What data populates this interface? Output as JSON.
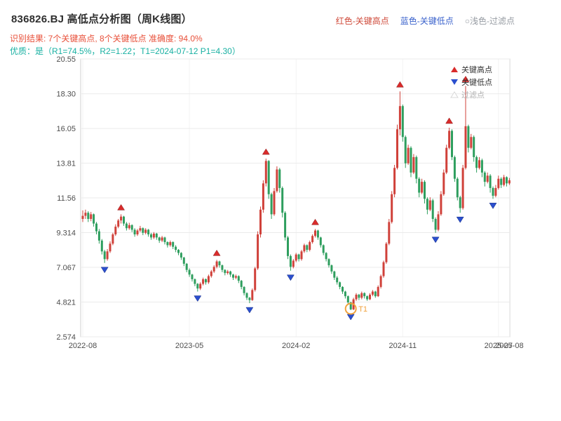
{
  "header": {
    "title": "836826.BJ 高低点分析图（周K线图）",
    "legend_top": [
      {
        "label": "红色-关键高点",
        "color": "#cf4a3a"
      },
      {
        "label": "蓝色-关键低点",
        "color": "#3a62cc"
      },
      {
        "label": "○浅色-过滤点",
        "color": "#979ca3"
      }
    ],
    "result_line": "识别结果: 7个关键高点, 8个关键低点  准确度: 94.0%",
    "result_color": "#e8503a",
    "quality_line": "优质：是（R1=74.5%，R2=1.22；T1=2024-07-12 P1=4.30）",
    "quality_color": "#18b0a2"
  },
  "chart_data": {
    "type": "candlestick",
    "title": "836826.BJ 高低点分析图（周K线图）",
    "ylim": [
      2.574,
      20.55
    ],
    "grid": "on",
    "y_ticks": [
      "20.55",
      "18.30",
      "16.05",
      "13.81",
      "11.56",
      "9.314",
      "7.067",
      "4.821",
      "2.574"
    ],
    "x_ticks": [
      {
        "label": "2022-08",
        "week": 0
      },
      {
        "label": "2023-05",
        "week": 39
      },
      {
        "label": "2024-02",
        "week": 78
      },
      {
        "label": "2024-11",
        "week": 117
      },
      {
        "label": "2025-07",
        "week": 152
      },
      {
        "label": "2025-08",
        "week": 156
      }
    ],
    "legend": [
      {
        "label": "关键高点",
        "marker": "up-triangle",
        "color": "#d92b2b",
        "text_color": "#333333"
      },
      {
        "label": "关键低点",
        "marker": "down-triangle",
        "color": "#2b4fce",
        "text_color": "#333333"
      },
      {
        "label": "过滤点",
        "marker": "hollow-triangle",
        "color": "#d8d8d8",
        "text_color": "#b0b0b0"
      }
    ],
    "colors": {
      "up": "#d0413a",
      "down": "#2e9e5e",
      "key_high": "#d92b2b",
      "key_low": "#2b4fce",
      "t1": "#f0a23c",
      "grid": "#ebebeb",
      "spine": "#d2d2d2"
    },
    "key_highs": [
      14,
      49,
      67,
      85,
      116,
      134,
      140
    ],
    "key_lows": [
      8,
      42,
      61,
      76,
      98,
      129,
      138,
      150
    ],
    "t1": {
      "week": 98,
      "label": "T1",
      "price": 4.3,
      "date": "2024-07-12"
    },
    "candles": [
      [
        10.2,
        10.75,
        10.0,
        10.4
      ],
      [
        10.4,
        10.8,
        10.2,
        10.6
      ],
      [
        10.6,
        10.7,
        10.0,
        10.2
      ],
      [
        10.2,
        10.65,
        10.05,
        10.5
      ],
      [
        10.5,
        10.55,
        9.7,
        9.9
      ],
      [
        9.9,
        10.0,
        9.2,
        9.4
      ],
      [
        9.4,
        9.55,
        8.6,
        8.8
      ],
      [
        8.8,
        8.9,
        7.9,
        8.1
      ],
      [
        8.1,
        8.2,
        7.35,
        7.6
      ],
      [
        7.6,
        8.25,
        7.5,
        8.1
      ],
      [
        8.1,
        8.75,
        8.0,
        8.6
      ],
      [
        8.6,
        9.3,
        8.5,
        9.2
      ],
      [
        9.2,
        9.85,
        9.1,
        9.7
      ],
      [
        9.7,
        10.2,
        9.6,
        10.1
      ],
      [
        10.1,
        10.5,
        9.9,
        10.35
      ],
      [
        10.35,
        10.4,
        9.75,
        9.9
      ],
      [
        9.9,
        10.0,
        9.45,
        9.6
      ],
      [
        9.6,
        9.95,
        9.5,
        9.8
      ],
      [
        9.8,
        9.85,
        9.35,
        9.5
      ],
      [
        9.5,
        9.6,
        9.05,
        9.2
      ],
      [
        9.2,
        9.55,
        9.1,
        9.45
      ],
      [
        9.45,
        9.75,
        9.35,
        9.6
      ],
      [
        9.6,
        9.65,
        9.15,
        9.3
      ],
      [
        9.3,
        9.6,
        9.2,
        9.5
      ],
      [
        9.5,
        9.55,
        9.05,
        9.2
      ],
      [
        9.2,
        9.3,
        8.85,
        9.0
      ],
      [
        9.0,
        9.35,
        8.9,
        9.25
      ],
      [
        9.25,
        9.3,
        8.85,
        9.0
      ],
      [
        9.0,
        9.05,
        8.65,
        8.8
      ],
      [
        8.8,
        9.1,
        8.7,
        9.0
      ],
      [
        9.0,
        9.05,
        8.55,
        8.7
      ],
      [
        8.7,
        8.75,
        8.35,
        8.5
      ],
      [
        8.5,
        8.8,
        8.4,
        8.7
      ],
      [
        8.7,
        8.75,
        8.25,
        8.4
      ],
      [
        8.4,
        8.5,
        8.05,
        8.2
      ],
      [
        8.2,
        8.25,
        7.85,
        8.0
      ],
      [
        8.0,
        8.05,
        7.55,
        7.7
      ],
      [
        7.7,
        7.75,
        7.15,
        7.3
      ],
      [
        7.3,
        7.35,
        6.75,
        6.9
      ],
      [
        6.9,
        7.0,
        6.45,
        6.6
      ],
      [
        6.6,
        6.65,
        6.15,
        6.3
      ],
      [
        6.3,
        6.35,
        5.85,
        6.0
      ],
      [
        6.0,
        6.05,
        5.5,
        5.7
      ],
      [
        5.7,
        6.1,
        5.6,
        6.0
      ],
      [
        6.0,
        6.4,
        5.9,
        6.3
      ],
      [
        6.3,
        6.35,
        5.95,
        6.1
      ],
      [
        6.1,
        6.6,
        6.0,
        6.5
      ],
      [
        6.5,
        6.9,
        6.4,
        6.8
      ],
      [
        6.8,
        7.2,
        6.7,
        7.1
      ],
      [
        7.1,
        7.55,
        7.0,
        7.45
      ],
      [
        7.45,
        7.5,
        7.05,
        7.2
      ],
      [
        7.2,
        7.25,
        6.75,
        6.9
      ],
      [
        6.9,
        6.95,
        6.55,
        6.7
      ],
      [
        6.7,
        6.9,
        6.6,
        6.8
      ],
      [
        6.8,
        6.85,
        6.45,
        6.6
      ],
      [
        6.6,
        6.65,
        6.25,
        6.4
      ],
      [
        6.4,
        6.6,
        6.3,
        6.5
      ],
      [
        6.5,
        6.55,
        6.05,
        6.2
      ],
      [
        6.2,
        6.25,
        5.65,
        5.8
      ],
      [
        5.8,
        5.85,
        5.25,
        5.4
      ],
      [
        5.4,
        5.45,
        4.95,
        5.1
      ],
      [
        5.1,
        5.15,
        4.75,
        4.95
      ],
      [
        4.95,
        5.7,
        4.9,
        5.6
      ],
      [
        5.6,
        7.1,
        5.5,
        7.0
      ],
      [
        7.0,
        9.4,
        6.9,
        9.2
      ],
      [
        9.2,
        11.0,
        9.0,
        10.8
      ],
      [
        10.8,
        12.7,
        10.6,
        12.5
      ],
      [
        12.5,
        14.1,
        12.3,
        13.95
      ],
      [
        13.95,
        14.0,
        11.5,
        11.8
      ],
      [
        11.8,
        11.9,
        10.2,
        10.5
      ],
      [
        10.5,
        12.2,
        10.4,
        12.0
      ],
      [
        12.0,
        13.6,
        11.9,
        13.4
      ],
      [
        13.4,
        13.5,
        11.9,
        12.2
      ],
      [
        12.2,
        12.3,
        10.3,
        10.6
      ],
      [
        10.6,
        10.7,
        8.8,
        9.0
      ],
      [
        9.0,
        9.1,
        7.6,
        7.8
      ],
      [
        7.8,
        7.9,
        6.85,
        7.1
      ],
      [
        7.1,
        7.6,
        7.0,
        7.5
      ],
      [
        7.5,
        8.0,
        7.4,
        7.9
      ],
      [
        7.9,
        7.95,
        7.45,
        7.6
      ],
      [
        7.6,
        8.2,
        7.5,
        8.1
      ],
      [
        8.1,
        8.6,
        8.0,
        8.5
      ],
      [
        8.5,
        8.55,
        8.05,
        8.2
      ],
      [
        8.2,
        8.8,
        8.1,
        8.7
      ],
      [
        8.7,
        9.2,
        8.6,
        9.1
      ],
      [
        9.1,
        9.55,
        9.0,
        9.45
      ],
      [
        9.45,
        9.5,
        8.85,
        9.0
      ],
      [
        9.0,
        9.05,
        8.35,
        8.5
      ],
      [
        8.5,
        8.55,
        7.85,
        8.0
      ],
      [
        8.0,
        8.05,
        7.45,
        7.6
      ],
      [
        7.6,
        7.65,
        7.05,
        7.2
      ],
      [
        7.2,
        7.25,
        6.65,
        6.8
      ],
      [
        6.8,
        6.85,
        6.25,
        6.4
      ],
      [
        6.4,
        6.5,
        5.95,
        6.1
      ],
      [
        6.1,
        6.15,
        5.65,
        5.8
      ],
      [
        5.8,
        5.85,
        5.35,
        5.5
      ],
      [
        5.5,
        5.55,
        5.05,
        5.2
      ],
      [
        5.2,
        5.25,
        4.65,
        4.8
      ],
      [
        4.8,
        4.85,
        4.3,
        4.35
      ],
      [
        4.35,
        5.1,
        4.3,
        5.0
      ],
      [
        5.0,
        5.4,
        4.9,
        5.3
      ],
      [
        5.3,
        5.35,
        4.95,
        5.1
      ],
      [
        5.1,
        5.5,
        5.0,
        5.4
      ],
      [
        5.4,
        5.45,
        5.05,
        5.2
      ],
      [
        5.2,
        5.25,
        4.9,
        5.0
      ],
      [
        5.0,
        5.4,
        4.95,
        5.3
      ],
      [
        5.3,
        5.6,
        5.2,
        5.5
      ],
      [
        5.5,
        5.55,
        5.1,
        5.2
      ],
      [
        5.2,
        5.9,
        5.15,
        5.8
      ],
      [
        5.8,
        6.6,
        5.7,
        6.5
      ],
      [
        6.5,
        7.5,
        6.4,
        7.4
      ],
      [
        7.4,
        8.7,
        7.3,
        8.6
      ],
      [
        8.6,
        10.2,
        8.5,
        10.0
      ],
      [
        10.0,
        12.0,
        9.9,
        11.8
      ],
      [
        11.8,
        13.7,
        11.6,
        13.5
      ],
      [
        13.5,
        16.3,
        13.4,
        16.0
      ],
      [
        16.0,
        18.45,
        15.6,
        17.5
      ],
      [
        17.5,
        17.6,
        15.2,
        15.5
      ],
      [
        15.5,
        15.6,
        13.5,
        13.8
      ],
      [
        13.8,
        15.0,
        13.7,
        14.8
      ],
      [
        14.8,
        14.9,
        12.9,
        13.2
      ],
      [
        13.2,
        14.4,
        13.1,
        14.2
      ],
      [
        14.2,
        14.3,
        12.5,
        12.8
      ],
      [
        12.8,
        12.9,
        11.6,
        11.9
      ],
      [
        11.9,
        12.8,
        11.8,
        12.6
      ],
      [
        12.6,
        12.7,
        11.2,
        11.5
      ],
      [
        11.5,
        11.6,
        10.5,
        10.8
      ],
      [
        10.8,
        11.6,
        10.7,
        11.4
      ],
      [
        11.4,
        11.5,
        10.0,
        10.2
      ],
      [
        10.2,
        10.3,
        9.3,
        9.5
      ],
      [
        9.5,
        10.7,
        9.4,
        10.5
      ],
      [
        10.5,
        12.0,
        10.4,
        11.8
      ],
      [
        11.8,
        13.4,
        11.7,
        13.2
      ],
      [
        13.2,
        15.0,
        13.1,
        14.8
      ],
      [
        14.8,
        16.1,
        14.7,
        15.9
      ],
      [
        15.9,
        16.0,
        14.0,
        14.2
      ],
      [
        14.2,
        14.3,
        12.6,
        12.8
      ],
      [
        12.8,
        12.9,
        11.4,
        11.6
      ],
      [
        11.6,
        11.7,
        10.6,
        10.9
      ],
      [
        10.9,
        13.7,
        10.8,
        13.5
      ],
      [
        13.5,
        18.8,
        13.4,
        16.2
      ],
      [
        16.2,
        16.3,
        14.5,
        14.8
      ],
      [
        14.8,
        15.7,
        14.7,
        15.5
      ],
      [
        15.5,
        15.6,
        13.9,
        14.2
      ],
      [
        14.2,
        14.3,
        13.2,
        13.5
      ],
      [
        13.5,
        14.2,
        13.4,
        14.0
      ],
      [
        14.0,
        14.1,
        12.9,
        13.2
      ],
      [
        13.2,
        13.3,
        12.3,
        12.6
      ],
      [
        12.6,
        13.2,
        12.5,
        13.0
      ],
      [
        13.0,
        13.1,
        11.9,
        12.2
      ],
      [
        12.2,
        12.3,
        11.5,
        11.7
      ],
      [
        11.7,
        12.4,
        11.6,
        12.2
      ],
      [
        12.2,
        13.0,
        12.1,
        12.8
      ],
      [
        12.8,
        12.9,
        12.2,
        12.4
      ],
      [
        12.4,
        13.05,
        12.3,
        12.9
      ],
      [
        12.9,
        12.95,
        12.3,
        12.5
      ],
      [
        12.5,
        12.85,
        12.4,
        12.7
      ]
    ]
  }
}
